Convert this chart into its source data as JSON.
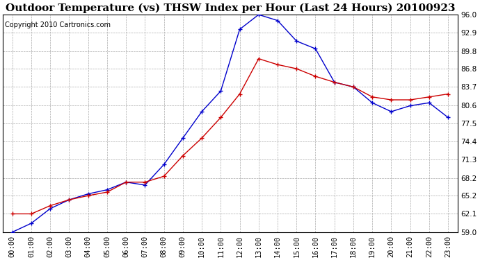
{
  "title": "Outdoor Temperature (vs) THSW Index per Hour (Last 24 Hours) 20100923",
  "copyright": "Copyright 2010 Cartronics.com",
  "hours": [
    "00:00",
    "01:00",
    "02:00",
    "03:00",
    "04:00",
    "05:00",
    "06:00",
    "07:00",
    "08:00",
    "09:00",
    "10:00",
    "11:00",
    "12:00",
    "13:00",
    "14:00",
    "15:00",
    "16:00",
    "17:00",
    "18:00",
    "19:00",
    "20:00",
    "21:00",
    "22:00",
    "23:00"
  ],
  "temp": [
    62.1,
    62.1,
    63.5,
    64.5,
    65.2,
    65.8,
    67.5,
    67.5,
    68.5,
    72.0,
    75.0,
    78.5,
    82.5,
    88.5,
    87.5,
    86.8,
    85.5,
    84.5,
    83.7,
    82.0,
    81.5,
    81.5,
    82.0,
    82.5
  ],
  "thsw": [
    59.0,
    60.5,
    63.0,
    64.5,
    65.5,
    66.2,
    67.5,
    67.0,
    70.5,
    75.0,
    79.5,
    83.0,
    93.5,
    96.0,
    95.0,
    91.5,
    90.2,
    84.5,
    83.7,
    81.0,
    79.5,
    80.5,
    81.0,
    78.5
  ],
  "temp_color": "#cc0000",
  "thsw_color": "#0000cc",
  "bg_color": "#ffffff",
  "grid_color": "#aaaaaa",
  "yticks": [
    59.0,
    62.1,
    65.2,
    68.2,
    71.3,
    74.4,
    77.5,
    80.6,
    83.7,
    86.8,
    89.8,
    92.9,
    96.0
  ],
  "ymin": 59.0,
  "ymax": 96.0,
  "title_fontsize": 11,
  "copyright_fontsize": 7,
  "tick_fontsize": 7.5
}
